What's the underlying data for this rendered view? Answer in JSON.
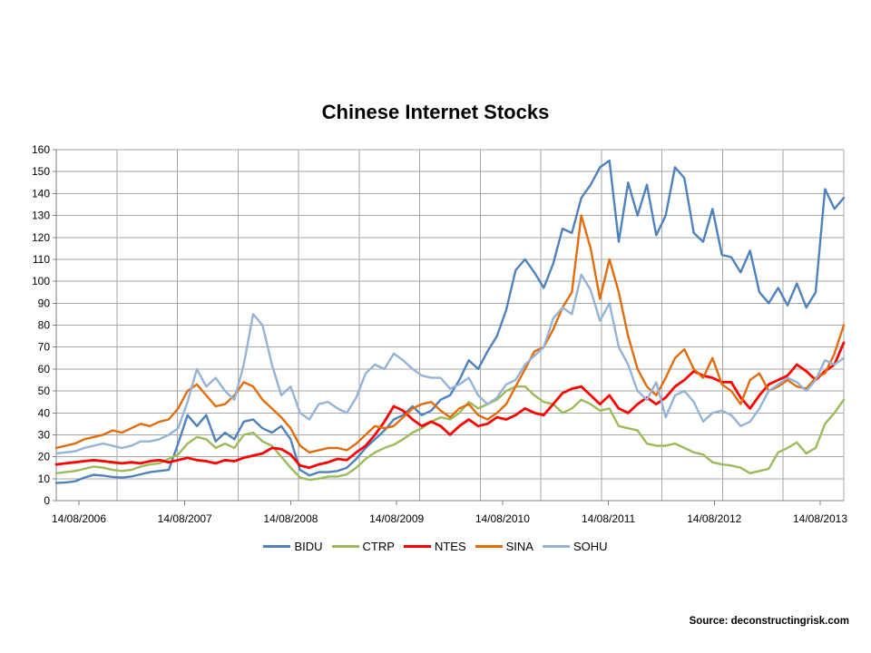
{
  "page": {
    "source_credit": "Source: deconstructingrisk.com"
  },
  "colors": {
    "background": "#ffffff",
    "gridline": "#a6a6a6",
    "axis": "#808080",
    "tick_label": "#000000",
    "title": "#000000"
  },
  "chart_data": {
    "type": "line",
    "title": "Chinese Internet Stocks",
    "xlabel": "",
    "ylabel": "",
    "ylim": [
      0,
      160
    ],
    "y_tick_step": 10,
    "grid": true,
    "legend_position": "bottom",
    "sampling": "monthly samples, 14/08/2006 to 14/08/2013",
    "x_tick_labels": [
      "14/08/2006",
      "14/08/2007",
      "14/08/2008",
      "14/08/2009",
      "14/08/2010",
      "14/08/2011",
      "14/08/2012",
      "14/08/2013"
    ],
    "series": [
      {
        "name": "BIDU",
        "color": "#4F81BD",
        "values": [
          8,
          8.3,
          8.8,
          10.5,
          11.8,
          11.4,
          10.8,
          10.5,
          11,
          12,
          13,
          13.5,
          14,
          26,
          39,
          34,
          39,
          27,
          31,
          28,
          36,
          37,
          33,
          31,
          34,
          28,
          14,
          11.5,
          13,
          13,
          13.5,
          15,
          19,
          24,
          28,
          32,
          37,
          39,
          43,
          39,
          41,
          46,
          48,
          55,
          64,
          60,
          68,
          75,
          87,
          105,
          110,
          104,
          97,
          108,
          124,
          122,
          138,
          144,
          152,
          155,
          118,
          145,
          130,
          144,
          121,
          130,
          152,
          147,
          122,
          118,
          133,
          112,
          111,
          104,
          114,
          95,
          90,
          97,
          89,
          99,
          88,
          95,
          142,
          133,
          138
        ]
      },
      {
        "name": "CTRP",
        "color": "#9BBB59",
        "values": [
          12.5,
          13,
          13.5,
          14.5,
          15.5,
          15,
          14,
          13.5,
          14,
          15.5,
          16.5,
          17,
          19,
          21,
          26,
          29,
          28,
          24,
          26,
          24,
          30,
          31,
          27,
          25,
          20,
          15,
          10.5,
          9.5,
          10,
          11,
          11,
          12,
          15,
          19,
          22,
          24,
          25.5,
          28,
          31,
          33,
          36,
          38,
          37,
          40,
          45,
          42,
          44,
          46,
          50,
          52,
          52,
          48,
          45,
          44,
          40,
          42,
          46,
          44,
          41,
          42,
          34,
          33,
          32,
          26,
          25,
          25,
          26,
          24,
          22,
          21,
          17.5,
          16.5,
          16,
          15,
          12.5,
          13.5,
          14.5,
          22,
          24,
          26.5,
          21.5,
          24,
          35,
          40,
          46
        ]
      },
      {
        "name": "NTES",
        "color": "#FF0000",
        "values": [
          16.5,
          17,
          17.5,
          18,
          18.5,
          18,
          17.5,
          17,
          17.5,
          17,
          18,
          18.5,
          17.5,
          18.5,
          19.5,
          18.5,
          18,
          17,
          18.5,
          18,
          19.5,
          20.5,
          21.5,
          24,
          23.5,
          21,
          16,
          15,
          16.5,
          17.5,
          19,
          18.5,
          22,
          25,
          30,
          36,
          43,
          41,
          37,
          34,
          36,
          34,
          30,
          34,
          37,
          34,
          35,
          38,
          37,
          39,
          42,
          40,
          39,
          44,
          49,
          51,
          52,
          48,
          44,
          48,
          42,
          40,
          44,
          47,
          44,
          47,
          52,
          55,
          59,
          57,
          56,
          54,
          54,
          47,
          42,
          48,
          53,
          55,
          57,
          62,
          59,
          55,
          59,
          62,
          72
        ]
      },
      {
        "name": "SINA",
        "color": "#E36C0A",
        "values": [
          24,
          25,
          26,
          28,
          29,
          30,
          32,
          31,
          33,
          35,
          34,
          36,
          37,
          42,
          50,
          53,
          48,
          43,
          44,
          48,
          54,
          52,
          46,
          42,
          38,
          33,
          25,
          22,
          23,
          24,
          24,
          23,
          26,
          30,
          34,
          33,
          34,
          38,
          42,
          44,
          45,
          41,
          38,
          42,
          44,
          39,
          37,
          40,
          44,
          52,
          60,
          68,
          70,
          78,
          88,
          95,
          130,
          115,
          92,
          110,
          95,
          75,
          60,
          52,
          48,
          56,
          65,
          69,
          60,
          56,
          65,
          53,
          50,
          44,
          55,
          58,
          50,
          52,
          55,
          52,
          51,
          56,
          58,
          67,
          80
        ]
      },
      {
        "name": "SOHU",
        "color": "#95B3D7",
        "values": [
          21.5,
          22,
          22.5,
          24,
          25,
          26,
          25,
          24,
          25,
          27,
          27,
          28,
          30,
          33,
          45,
          60,
          52,
          56,
          50,
          46,
          62,
          85,
          80,
          62,
          48,
          52,
          40,
          37,
          44,
          45,
          42,
          40,
          47,
          58,
          62,
          60,
          67,
          64,
          60,
          57,
          56,
          56,
          51,
          53,
          56,
          48,
          44,
          47,
          53,
          55,
          62,
          66,
          70,
          83,
          88,
          85,
          103,
          96,
          82,
          90,
          70,
          62,
          50,
          46,
          54,
          38,
          48,
          50,
          45,
          36,
          40,
          41,
          39,
          34,
          36,
          42,
          50,
          53,
          56,
          54,
          50,
          55,
          64,
          62,
          65
        ]
      }
    ]
  }
}
